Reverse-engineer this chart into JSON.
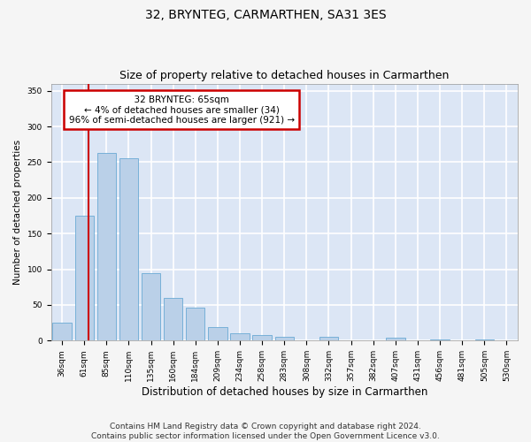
{
  "title": "32, BRYNTEG, CARMARTHEN, SA31 3ES",
  "subtitle": "Size of property relative to detached houses in Carmarthen",
  "xlabel": "Distribution of detached houses by size in Carmarthen",
  "ylabel": "Number of detached properties",
  "bar_labels": [
    "36sqm",
    "61sqm",
    "85sqm",
    "110sqm",
    "135sqm",
    "160sqm",
    "184sqm",
    "209sqm",
    "234sqm",
    "258sqm",
    "283sqm",
    "308sqm",
    "332sqm",
    "357sqm",
    "382sqm",
    "407sqm",
    "431sqm",
    "456sqm",
    "481sqm",
    "505sqm",
    "530sqm"
  ],
  "bar_values": [
    25,
    175,
    263,
    255,
    95,
    60,
    46,
    19,
    10,
    8,
    5,
    0,
    5,
    0,
    0,
    4,
    0,
    2,
    0,
    2,
    0
  ],
  "bar_color": "#bad0e8",
  "bar_edge_color": "#6aaad4",
  "background_color": "#dce6f5",
  "grid_color": "#ffffff",
  "annotation_text": "  32 BRYNTEG: 65sqm  \n← 4% of detached houses are smaller (34)\n96% of semi-detached houses are larger (921) →",
  "annotation_box_color": "#ffffff",
  "annotation_box_edge_color": "#cc0000",
  "red_line_x": 1.18,
  "ylim": [
    0,
    360
  ],
  "yticks": [
    0,
    50,
    100,
    150,
    200,
    250,
    300,
    350
  ],
  "footer_text": "Contains HM Land Registry data © Crown copyright and database right 2024.\nContains public sector information licensed under the Open Government Licence v3.0.",
  "title_fontsize": 10,
  "subtitle_fontsize": 9,
  "xlabel_fontsize": 8.5,
  "ylabel_fontsize": 7.5,
  "tick_fontsize": 6.5,
  "annotation_fontsize": 7.5,
  "footer_fontsize": 6.5
}
